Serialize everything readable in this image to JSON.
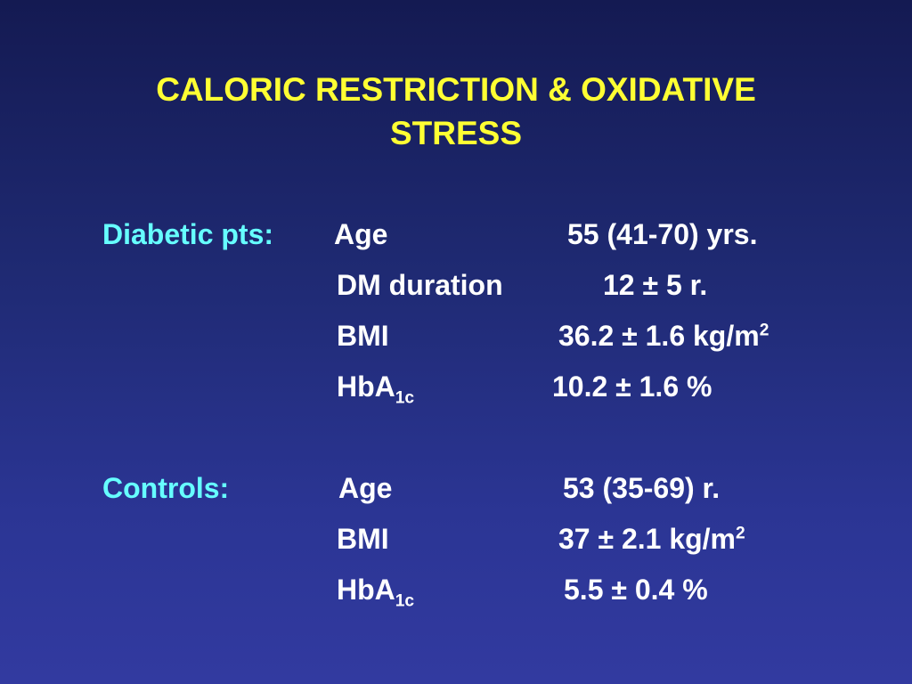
{
  "title": {
    "line1": "CALORIC RESTRICTION & OXIDATIVE",
    "line2": "STRESS"
  },
  "diabetic": {
    "label": "Diabetic pts:",
    "rows": [
      {
        "param": "Age",
        "value": "55 (41-70) yrs."
      },
      {
        "param": "DM duration",
        "value": "12 ± 5 r."
      },
      {
        "param": "BMI",
        "value": "36.2 ± 1.6 kg/m",
        "value_sup": "2"
      },
      {
        "param": "HbA",
        "param_sub": "1c",
        "value": "10.2 ± 1.6 %"
      }
    ]
  },
  "controls": {
    "label": "Controls:",
    "rows": [
      {
        "param": "Age",
        "value": "53 (35-69) r."
      },
      {
        "param": "BMI",
        "value": "37 ± 2.1 kg/m",
        "value_sup": "2"
      },
      {
        "param": "HbA",
        "param_sub": "1c",
        "value": "5.5 ± 0.4 %"
      }
    ]
  },
  "colors": {
    "title": "#ffff33",
    "group_label": "#66ffff",
    "body_text": "#ffffff",
    "background_top": "#141a52",
    "background_bottom": "#323aa0"
  }
}
